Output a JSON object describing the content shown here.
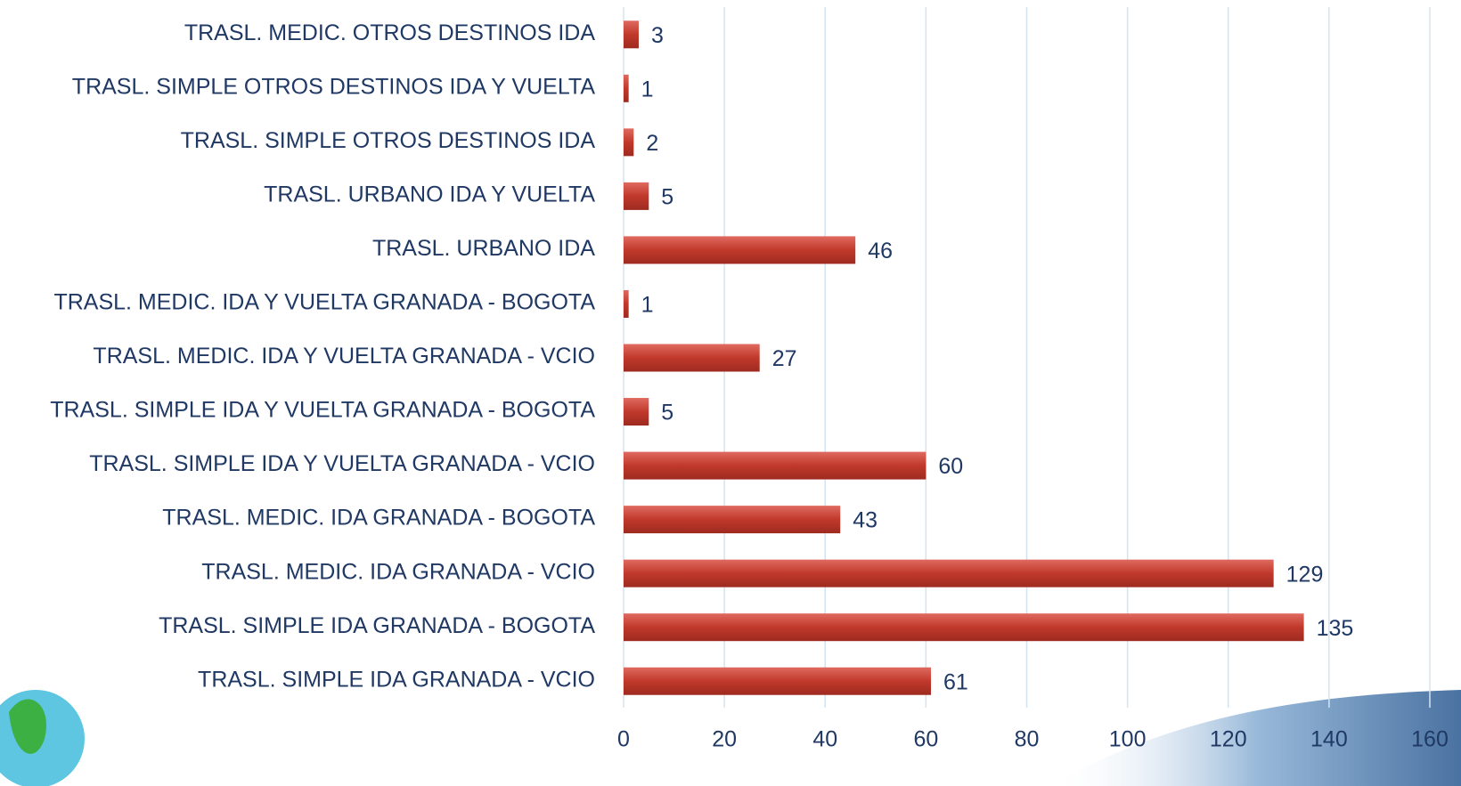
{
  "chart_data": {
    "type": "bar",
    "orientation": "horizontal",
    "categories": [
      "TRASL. MEDIC. OTROS DESTINOS IDA",
      "TRASL. SIMPLE OTROS DESTINOS IDA Y VUELTA",
      "TRASL. SIMPLE OTROS DESTINOS IDA",
      "TRASL. URBANO IDA Y VUELTA",
      "TRASL. URBANO IDA",
      "TRASL. MEDIC. IDA Y VUELTA GRANADA - BOGOTA",
      "TRASL. MEDIC. IDA Y VUELTA GRANADA - VCIO",
      "TRASL. SIMPLE IDA Y VUELTA GRANADA - BOGOTA",
      "TRASL. SIMPLE IDA Y VUELTA GRANADA - VCIO",
      "TRASL. MEDIC. IDA GRANADA - BOGOTA",
      "TRASL. MEDIC. IDA GRANADA - VCIO",
      "TRASL. SIMPLE IDA GRANADA - BOGOTA",
      "TRASL. SIMPLE IDA GRANADA - VCIO"
    ],
    "values": [
      3,
      1,
      2,
      5,
      46,
      1,
      27,
      5,
      60,
      43,
      129,
      135,
      61
    ],
    "color": "#c0392b",
    "xlim": [
      0,
      160
    ],
    "xticks": [
      0,
      20,
      40,
      60,
      80,
      100,
      120,
      140,
      160
    ],
    "grid": true
  }
}
